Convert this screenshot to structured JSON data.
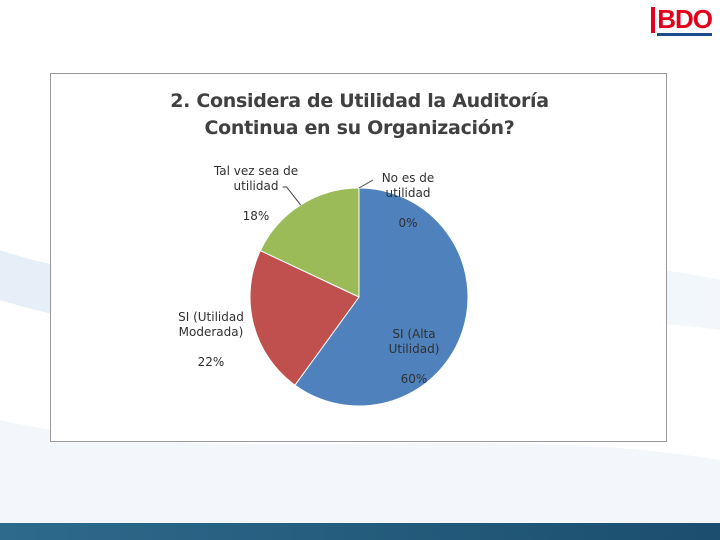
{
  "brand": {
    "logo_text": "BDO",
    "logo_color": "#e2001a",
    "underline_color": "#1a4b8c"
  },
  "footer": {
    "color": "#245c7e"
  },
  "chart_data": {
    "type": "pie",
    "title": "2. Considera de Utilidad la Auditoría Continua en su Organización?",
    "title_lines": [
      "2. Considera de Utilidad la Auditoría",
      "Continua en su Organización?"
    ],
    "slices": [
      {
        "label": "No es de utilidad",
        "label_lines": "No es de\nutilidad",
        "value": 0,
        "pct_text": "0%",
        "color": "#d9d9d9"
      },
      {
        "label": "SI (Alta Utilidad)",
        "label_lines": "SI (Alta\nUtilidad)",
        "value": 60,
        "pct_text": "60%",
        "color": "#4f81bd"
      },
      {
        "label": "SI (Utilidad Moderada)",
        "label_lines": "SI (Utilidad\nModerada)",
        "value": 22,
        "pct_text": "22%",
        "color": "#c0504d"
      },
      {
        "label": "Tal vez sea de utilidad",
        "label_lines": "Tal vez sea de\nutilidad",
        "value": 18,
        "pct_text": "18%",
        "color": "#9bbb59"
      }
    ],
    "start_angle_deg": 0,
    "direction": "clockwise",
    "legend": "none"
  }
}
